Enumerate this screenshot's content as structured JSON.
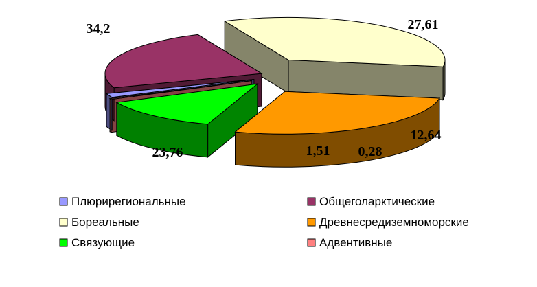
{
  "chart_data": {
    "type": "pie",
    "style": "3d-exploded",
    "labels": [
      "Плюрирегиональные",
      "Общеголарктические",
      "Бореальные",
      "Древнесредиземноморские",
      "Связующие",
      "Адвентивные"
    ],
    "values": [
      1.51,
      23.76,
      34.2,
      27.61,
      12.64,
      0.28
    ],
    "value_labels": [
      "1,51",
      "23,76",
      "34,2",
      "27,61",
      "12,64",
      "0,28"
    ],
    "colors": [
      "#9999ff",
      "#993366",
      "#ffffcc",
      "#ff9900",
      "#00ff00",
      "#ff8080"
    ],
    "legend": {
      "placement": "bottom",
      "items": [
        {
          "label": "Плюрирегиональные",
          "color": "#9999ff"
        },
        {
          "label": "Общеголарктические",
          "color": "#993366"
        },
        {
          "label": "Бореальные",
          "color": "#ffffcc"
        },
        {
          "label": "Древнесредиземноморские",
          "color": "#ff9900"
        },
        {
          "label": "Связующие",
          "color": "#00ff00"
        },
        {
          "label": "Адвентивные",
          "color": "#ff8080"
        }
      ]
    }
  }
}
